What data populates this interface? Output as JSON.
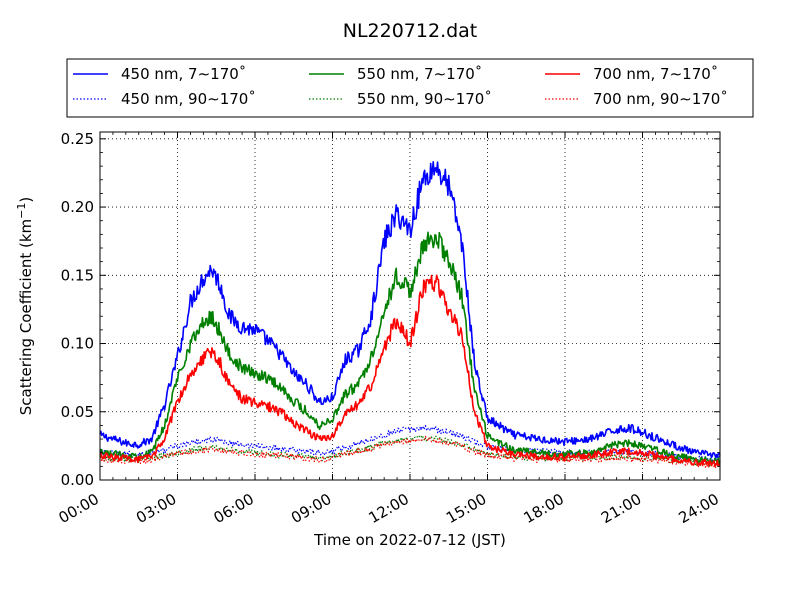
{
  "chart_data": {
    "type": "line",
    "title": "NL220712.dat",
    "xlabel": "Time on 2022-07-12 (JST)",
    "ylabel": "Scattering Coefficient (km",
    "ylabel_sup": "−1",
    "ylabel_tail": ")",
    "x_ticks": [
      "00:00",
      "03:00",
      "06:00",
      "09:00",
      "12:00",
      "15:00",
      "18:00",
      "21:00",
      "24:00"
    ],
    "y_ticks": [
      "0.00",
      "0.05",
      "0.10",
      "0.15",
      "0.20",
      "0.25"
    ],
    "xlim": [
      "2022-07-12 00:00",
      "2022-07-13 00:00"
    ],
    "ylim": [
      0,
      0.255
    ],
    "grid": true,
    "legend_position": "above plot",
    "x": [
      "00:00",
      "01:00",
      "01:30",
      "02:00",
      "02:30",
      "03:00",
      "03:30",
      "04:00",
      "04:20",
      "04:40",
      "05:00",
      "05:30",
      "06:00",
      "06:30",
      "07:00",
      "07:30",
      "08:00",
      "08:30",
      "09:00",
      "09:30",
      "10:00",
      "10:30",
      "11:00",
      "11:30",
      "12:00",
      "12:30",
      "13:00",
      "13:30",
      "14:00",
      "14:30",
      "15:00",
      "16:00",
      "17:00",
      "18:00",
      "19:00",
      "20:00",
      "20:30",
      "21:00",
      "22:00",
      "23:00",
      "24:00"
    ],
    "series": [
      {
        "name": "450 nm, 7∼170˚",
        "color": "#0000ff",
        "style": "solid",
        "values": [
          0.033,
          0.027,
          0.026,
          0.03,
          0.055,
          0.09,
          0.13,
          0.148,
          0.155,
          0.142,
          0.12,
          0.112,
          0.11,
          0.102,
          0.092,
          0.078,
          0.07,
          0.057,
          0.06,
          0.088,
          0.095,
          0.12,
          0.175,
          0.195,
          0.183,
          0.22,
          0.23,
          0.215,
          0.175,
          0.085,
          0.045,
          0.033,
          0.03,
          0.028,
          0.03,
          0.037,
          0.038,
          0.035,
          0.027,
          0.02,
          0.018
        ]
      },
      {
        "name": "450 nm, 90∼170˚",
        "color": "#0000ff",
        "style": "dotted",
        "values": [
          0.02,
          0.019,
          0.019,
          0.02,
          0.022,
          0.025,
          0.027,
          0.029,
          0.03,
          0.029,
          0.027,
          0.026,
          0.025,
          0.024,
          0.023,
          0.022,
          0.021,
          0.02,
          0.021,
          0.024,
          0.027,
          0.03,
          0.033,
          0.036,
          0.037,
          0.038,
          0.037,
          0.035,
          0.032,
          0.028,
          0.024,
          0.022,
          0.021,
          0.02,
          0.02,
          0.021,
          0.021,
          0.02,
          0.018,
          0.016,
          0.015
        ]
      },
      {
        "name": "550 nm, 7∼170˚",
        "color": "#008000",
        "style": "solid",
        "values": [
          0.02,
          0.018,
          0.018,
          0.02,
          0.04,
          0.075,
          0.1,
          0.115,
          0.12,
          0.108,
          0.092,
          0.082,
          0.078,
          0.075,
          0.068,
          0.058,
          0.05,
          0.04,
          0.045,
          0.063,
          0.07,
          0.09,
          0.125,
          0.15,
          0.138,
          0.17,
          0.18,
          0.16,
          0.135,
          0.065,
          0.032,
          0.022,
          0.02,
          0.019,
          0.02,
          0.026,
          0.027,
          0.025,
          0.019,
          0.015,
          0.014
        ]
      },
      {
        "name": "550 nm, 90∼170˚",
        "color": "#008000",
        "style": "dotted",
        "values": [
          0.016,
          0.015,
          0.015,
          0.016,
          0.018,
          0.02,
          0.022,
          0.023,
          0.024,
          0.023,
          0.022,
          0.021,
          0.02,
          0.019,
          0.018,
          0.018,
          0.017,
          0.016,
          0.017,
          0.02,
          0.022,
          0.024,
          0.027,
          0.029,
          0.03,
          0.031,
          0.03,
          0.028,
          0.026,
          0.022,
          0.019,
          0.017,
          0.016,
          0.016,
          0.016,
          0.017,
          0.017,
          0.016,
          0.015,
          0.013,
          0.012
        ]
      },
      {
        "name": "700 nm, 7∼170˚",
        "color": "#ff0000",
        "style": "solid",
        "values": [
          0.018,
          0.016,
          0.015,
          0.017,
          0.03,
          0.058,
          0.078,
          0.09,
          0.094,
          0.085,
          0.07,
          0.06,
          0.056,
          0.054,
          0.05,
          0.042,
          0.036,
          0.03,
          0.032,
          0.048,
          0.055,
          0.07,
          0.098,
          0.118,
          0.1,
          0.14,
          0.145,
          0.125,
          0.105,
          0.05,
          0.025,
          0.019,
          0.017,
          0.017,
          0.018,
          0.021,
          0.021,
          0.02,
          0.016,
          0.013,
          0.012
        ]
      },
      {
        "name": "700 nm, 90∼170˚",
        "color": "#ff0000",
        "style": "dotted",
        "values": [
          0.015,
          0.014,
          0.014,
          0.015,
          0.017,
          0.019,
          0.021,
          0.022,
          0.023,
          0.022,
          0.021,
          0.02,
          0.019,
          0.018,
          0.018,
          0.017,
          0.016,
          0.015,
          0.016,
          0.019,
          0.021,
          0.023,
          0.026,
          0.028,
          0.029,
          0.03,
          0.029,
          0.027,
          0.025,
          0.021,
          0.018,
          0.016,
          0.015,
          0.015,
          0.015,
          0.016,
          0.016,
          0.015,
          0.014,
          0.012,
          0.011
        ]
      }
    ]
  }
}
